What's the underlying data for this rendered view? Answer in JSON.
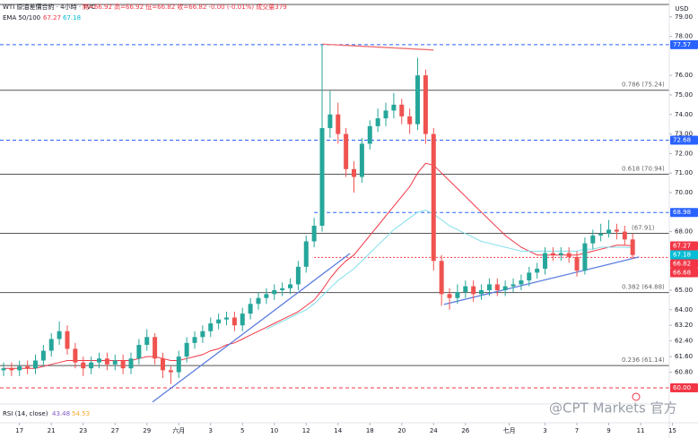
{
  "chart_data": {
    "type": "candlestick",
    "title": "WTI 原油差價合約 · 4小時 · TVC",
    "quote": "開=66.92 高=66.92 低=66.82 收=66.82 -0.00 (-0.01%) 成交量379",
    "indicator": {
      "name": "EMA 50/100",
      "values": [
        67.27,
        67.18
      ],
      "colors": [
        "#f23645",
        "#00bcd4"
      ]
    },
    "rsi": {
      "name": "RSI (14, close)",
      "values": [
        43.48,
        54.53
      ],
      "colors": [
        "#7e57c2",
        "#f9a825"
      ]
    },
    "currency": "USD",
    "symbol": "USOIL",
    "countdown": "02:21:13",
    "watermark": "@CPT Markets 官方",
    "up_color": "#26a69a",
    "down_color": "#ef5350",
    "open": [
      60.9,
      61.0,
      60.9,
      61.1,
      61.0,
      61.4,
      61.9,
      62.5,
      62.9,
      62.0,
      61.3,
      61.0,
      61.3,
      61.5,
      61.2,
      61.4,
      61.0,
      61.5,
      62.2,
      62.6,
      61.5,
      60.9,
      60.8,
      61.6,
      62.3,
      62.6,
      62.9,
      63.3,
      63.5,
      63.6,
      63.2,
      63.8,
      64.3,
      64.6,
      64.8,
      65.0,
      65.1,
      65.3,
      66.2,
      67.5,
      68.3,
      73.3,
      74.0,
      73.0,
      71.2,
      70.8,
      72.5,
      73.4,
      73.8,
      74.2,
      74.5,
      73.9,
      73.5,
      76.0,
      73.0,
      66.5,
      64.8,
      64.6,
      64.9,
      65.2,
      64.8,
      65.0,
      65.3,
      65.0,
      65.2,
      65.3,
      65.5,
      65.9,
      66.1,
      66.9,
      66.8,
      66.9,
      66.7,
      66.0,
      67.4,
      67.8,
      67.9,
      68.1,
      68.0,
      67.6
    ],
    "high": [
      61.3,
      61.3,
      61.4,
      61.4,
      61.7,
      62.2,
      62.8,
      63.4,
      63.2,
      62.3,
      61.6,
      61.6,
      61.8,
      61.8,
      61.7,
      61.7,
      61.8,
      62.5,
      63.0,
      62.8,
      61.8,
      61.1,
      61.9,
      62.6,
      62.9,
      63.2,
      63.6,
      63.8,
      63.9,
      63.9,
      64.1,
      64.6,
      64.9,
      65.1,
      65.3,
      65.4,
      65.6,
      66.5,
      67.8,
      68.7,
      77.6,
      75.2,
      74.6,
      73.3,
      71.6,
      72.8,
      73.7,
      74.3,
      74.6,
      75.1,
      74.8,
      74.3,
      76.9,
      76.3,
      73.3,
      66.8,
      65.1,
      65.3,
      65.5,
      65.5,
      65.3,
      65.6,
      65.6,
      65.5,
      65.6,
      65.8,
      66.2,
      66.4,
      67.2,
      67.2,
      67.2,
      67.2,
      67.0,
      67.7,
      68.1,
      68.4,
      68.6,
      68.4,
      68.3,
      67.9
    ],
    "low": [
      60.6,
      60.6,
      60.6,
      60.7,
      60.7,
      61.1,
      61.6,
      62.2,
      61.7,
      61.0,
      60.6,
      60.7,
      61.0,
      60.9,
      60.9,
      60.7,
      60.7,
      61.2,
      61.9,
      61.2,
      60.5,
      60.2,
      60.5,
      61.3,
      62.0,
      62.3,
      62.6,
      63.0,
      63.2,
      62.9,
      62.9,
      63.5,
      64.0,
      64.3,
      64.5,
      64.7,
      64.8,
      65.0,
      65.9,
      67.2,
      68.0,
      72.8,
      72.5,
      70.8,
      70.0,
      70.5,
      72.2,
      73.1,
      73.4,
      73.8,
      73.5,
      73.0,
      73.2,
      72.5,
      66.0,
      64.2,
      64.0,
      64.3,
      64.6,
      64.4,
      64.5,
      64.7,
      64.7,
      64.7,
      64.9,
      65.0,
      65.2,
      65.6,
      65.8,
      66.5,
      66.5,
      66.4,
      65.7,
      65.8,
      67.1,
      67.5,
      67.7,
      67.6,
      67.3,
      66.6
    ],
    "close": [
      61.0,
      60.9,
      61.1,
      61.0,
      61.4,
      61.9,
      62.5,
      62.9,
      62.0,
      61.3,
      61.0,
      61.3,
      61.5,
      61.2,
      61.4,
      61.0,
      61.5,
      62.2,
      62.6,
      61.5,
      60.9,
      60.8,
      61.6,
      62.3,
      62.6,
      62.9,
      63.3,
      63.5,
      63.6,
      63.2,
      63.8,
      64.3,
      64.6,
      64.8,
      65.0,
      65.1,
      65.3,
      66.2,
      67.5,
      68.3,
      73.3,
      74.0,
      73.0,
      71.2,
      70.8,
      72.5,
      73.4,
      73.8,
      74.2,
      74.5,
      73.9,
      73.5,
      76.0,
      73.0,
      66.5,
      64.8,
      64.6,
      64.9,
      65.2,
      64.8,
      65.0,
      65.3,
      65.0,
      65.2,
      65.3,
      65.5,
      65.9,
      66.1,
      66.9,
      66.8,
      66.9,
      66.7,
      66.0,
      67.4,
      67.8,
      67.9,
      68.1,
      68.0,
      67.6,
      66.8
    ],
    "series": [
      {
        "name": "EMA 50",
        "color": "#f23645",
        "values": [
          61.0,
          61.0,
          61.0,
          61.0,
          61.0,
          61.1,
          61.2,
          61.3,
          61.4,
          61.4,
          61.4,
          61.4,
          61.4,
          61.4,
          61.4,
          61.4,
          61.4,
          61.5,
          61.6,
          61.6,
          61.5,
          61.4,
          61.4,
          61.5,
          61.6,
          61.7,
          61.9,
          62.0,
          62.2,
          62.3,
          62.5,
          62.7,
          62.9,
          63.1,
          63.3,
          63.5,
          63.7,
          63.9,
          64.2,
          64.5,
          65.0,
          65.6,
          66.1,
          66.5,
          66.8,
          67.3,
          67.8,
          68.3,
          68.8,
          69.3,
          69.8,
          70.3,
          71.0,
          71.5,
          71.4,
          71.0,
          70.6,
          70.2,
          69.8,
          69.4,
          69.0,
          68.6,
          68.2,
          67.8,
          67.5,
          67.2,
          67.0,
          66.8,
          66.8,
          66.8,
          66.8,
          66.8,
          66.8,
          66.9,
          67.0,
          67.1,
          67.2,
          67.3,
          67.3,
          67.27
        ]
      },
      {
        "name": "EMA 100",
        "color": "#80deea",
        "values": [
          null,
          null,
          null,
          null,
          null,
          null,
          null,
          null,
          null,
          null,
          null,
          null,
          null,
          null,
          null,
          null,
          null,
          null,
          null,
          null,
          null,
          null,
          null,
          null,
          null,
          null,
          null,
          null,
          null,
          null,
          null,
          null,
          null,
          63.0,
          63.2,
          63.4,
          63.6,
          63.8,
          64.0,
          64.3,
          64.7,
          65.1,
          65.5,
          65.8,
          66.1,
          66.5,
          66.9,
          67.3,
          67.7,
          68.1,
          68.4,
          68.7,
          69.0,
          69.1,
          68.9,
          68.6,
          68.3,
          68.1,
          67.9,
          67.7,
          67.5,
          67.4,
          67.3,
          67.2,
          67.1,
          67.0,
          67.0,
          67.0,
          67.0,
          67.0,
          67.0,
          67.0,
          67.0,
          67.1,
          67.1,
          67.2,
          67.2,
          67.2,
          67.2,
          67.18
        ]
      }
    ],
    "trendlines": [
      {
        "color": "#5b7de0",
        "x": [
          18.7,
          43.5
        ],
        "y": [
          59.27,
          66.88
        ]
      },
      {
        "color": "#5b7de0",
        "x": [
          55.3,
          79.8
        ],
        "y": [
          64.27,
          66.7
        ]
      },
      {
        "color": "#f07070",
        "x": [
          40,
          54
        ],
        "y": [
          77.6,
          77.3
        ]
      }
    ],
    "levels": [
      {
        "value": 79.63,
        "color": "#555555",
        "style": "solid"
      },
      {
        "value": 77.57,
        "color": "#2962ff",
        "style": "dashed"
      },
      {
        "value": 75.24,
        "color": "#555555",
        "style": "solid",
        "label": "0.786 (75.24)"
      },
      {
        "value": 72.68,
        "color": "#2962ff",
        "style": "dashed"
      },
      {
        "value": 70.94,
        "color": "#555555",
        "style": "solid",
        "label": "0.618 (70.94)"
      },
      {
        "value": 68.98,
        "color": "#2962ff",
        "style": "dashed",
        "from": 39
      },
      {
        "value": 67.91,
        "color": "#555555",
        "style": "solid",
        "label": "(67.91)"
      },
      {
        "value": 66.68,
        "color": "#f23645",
        "style": "dotted",
        "from": 39
      },
      {
        "value": 64.88,
        "color": "#555555",
        "style": "solid",
        "label": "0.382 (64.88)"
      },
      {
        "value": 61.14,
        "color": "#555555",
        "style": "solid",
        "label": "0.236 (61.14)"
      },
      {
        "value": 60.0,
        "color": "#f23645",
        "style": "dashed"
      }
    ],
    "price_tags": [
      {
        "value": 77.57,
        "label": "77.57",
        "color": "#2962ff"
      },
      {
        "value": 72.68,
        "label": "72.68",
        "color": "#2962ff"
      },
      {
        "value": 68.98,
        "label": "68.98",
        "color": "#2962ff"
      },
      {
        "value": 67.27,
        "label": "67.27",
        "color": "#f23645"
      },
      {
        "value": 67.18,
        "label": "67.18",
        "color": "#00bcd4"
      },
      {
        "value": 66.82,
        "label": "66.82",
        "color": "#f23645"
      },
      {
        "value": 66.68,
        "label": "66.68",
        "color": "#f23645"
      },
      {
        "value": 60.0,
        "label": "60.00",
        "color": "#f23645"
      }
    ],
    "xlim": [
      -0.45,
      83.6
    ],
    "xticks": [
      {
        "value": 2,
        "label": "17"
      },
      {
        "value": 6,
        "label": "21"
      },
      {
        "value": 10,
        "label": "23"
      },
      {
        "value": 14,
        "label": "27"
      },
      {
        "value": 18,
        "label": "29"
      },
      {
        "value": 22,
        "label": "六月"
      },
      {
        "value": 26,
        "label": "3"
      },
      {
        "value": 30,
        "label": "5"
      },
      {
        "value": 34,
        "label": "10"
      },
      {
        "value": 38,
        "label": "12"
      },
      {
        "value": 42,
        "label": "14"
      },
      {
        "value": 46,
        "label": "18"
      },
      {
        "value": 50,
        "label": "20"
      },
      {
        "value": 54,
        "label": "24"
      },
      {
        "value": 58,
        "label": "26"
      },
      {
        "value": 63.5,
        "label": "七月"
      },
      {
        "value": 68,
        "label": "3"
      },
      {
        "value": 72,
        "label": "7"
      },
      {
        "value": 76,
        "label": "9"
      },
      {
        "value": 80,
        "label": "11"
      },
      {
        "value": 84,
        "label": "15"
      }
    ],
    "ylim": [
      59.22,
      79.86
    ],
    "yticks": [
      {
        "value": 79,
        "label": "79.00"
      },
      {
        "value": 78,
        "label": "78.00"
      },
      {
        "value": 76,
        "label": "76.00"
      },
      {
        "value": 75,
        "label": "75.00"
      },
      {
        "value": 74,
        "label": "74.00"
      },
      {
        "value": 73,
        "label": "73.00"
      },
      {
        "value": 72,
        "label": "72.00"
      },
      {
        "value": 71,
        "label": "71.00"
      },
      {
        "value": 70,
        "label": "70.00"
      },
      {
        "value": 68,
        "label": "68.00"
      },
      {
        "value": 65,
        "label": "65.00"
      },
      {
        "value": 64,
        "label": "64.00"
      },
      {
        "value": 63.2,
        "label": "63.20"
      },
      {
        "value": 62.4,
        "label": "62.40"
      },
      {
        "value": 61.6,
        "label": "61.60"
      },
      {
        "value": 60.8,
        "label": "60.80"
      }
    ]
  }
}
